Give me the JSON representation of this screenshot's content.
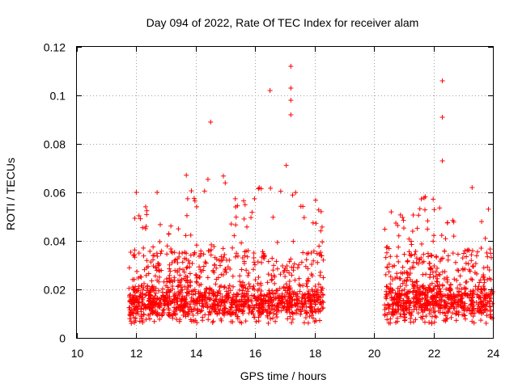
{
  "chart_data": {
    "type": "scatter",
    "title": "Day 094 of 2022, Rate Of TEC Index for receiver alam",
    "xlabel": "GPS time / hours",
    "ylabel": "ROTI / TECUs",
    "xlim": [
      10,
      24
    ],
    "ylim": [
      0,
      0.12
    ],
    "x_ticks": [
      "10",
      "12",
      "14",
      "16",
      "18",
      "20",
      "22",
      "24"
    ],
    "y_ticks": [
      "0",
      "0.02",
      "0.04",
      "0.06",
      "0.08",
      "0.1",
      "0.12"
    ],
    "grid": true,
    "marker": "+",
    "color": "#ff0000",
    "data_gap_hours": [
      18.3,
      20.3
    ],
    "notable_points": [
      {
        "x": 12.0,
        "y": 0.06
      },
      {
        "x": 12.7,
        "y": 0.06
      },
      {
        "x": 14.5,
        "y": 0.089
      },
      {
        "x": 16.5,
        "y": 0.102
      },
      {
        "x": 17.2,
        "y": 0.112
      },
      {
        "x": 17.2,
        "y": 0.103
      },
      {
        "x": 17.2,
        "y": 0.098
      },
      {
        "x": 17.2,
        "y": 0.092
      },
      {
        "x": 22.3,
        "y": 0.106
      },
      {
        "x": 22.3,
        "y": 0.091
      },
      {
        "x": 22.3,
        "y": 0.073
      },
      {
        "x": 23.3,
        "y": 0.062
      }
    ]
  }
}
